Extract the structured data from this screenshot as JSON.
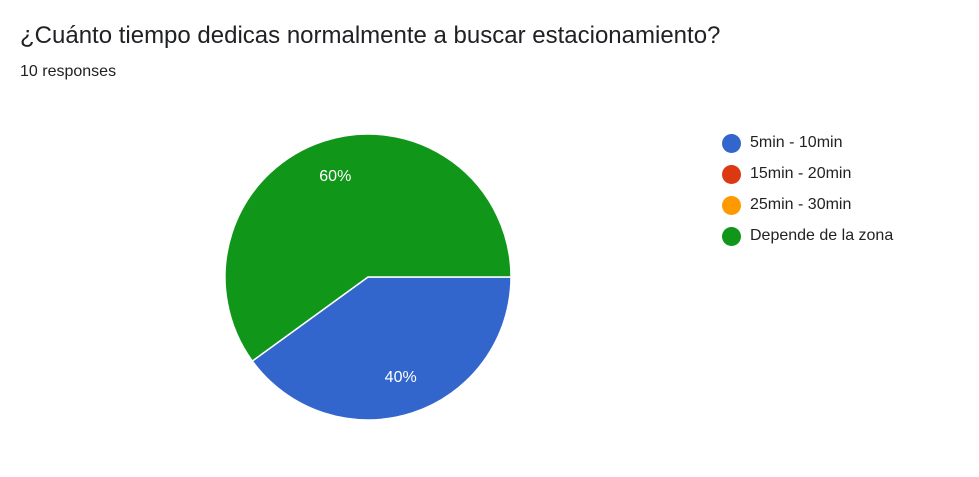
{
  "header": {
    "title": "¿Cuánto tiempo dedicas normalmente a buscar estacionamiento?",
    "responses": "10 responses"
  },
  "chart_data": {
    "type": "pie",
    "legend_position": "right",
    "slices": [
      {
        "label": "5min - 10min",
        "value": 40,
        "display": "40%",
        "color": "#3366cc"
      },
      {
        "label": "15min - 20min",
        "value": 0,
        "display": "",
        "color": "#dc3912"
      },
      {
        "label": "25min - 30min",
        "value": 0,
        "display": "",
        "color": "#ff9900"
      },
      {
        "label": "Depende de la zona",
        "value": 60,
        "display": "60%",
        "color": "#109618"
      }
    ]
  }
}
